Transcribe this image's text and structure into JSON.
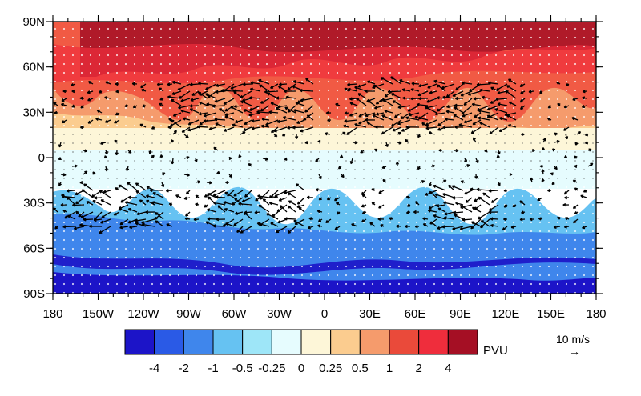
{
  "map": {
    "lat_labels": [
      "90N",
      "60N",
      "30N",
      "0",
      "30S",
      "60S",
      "90S"
    ],
    "lon_labels": [
      "180",
      "150W",
      "120W",
      "90W",
      "60W",
      "30W",
      "0",
      "30E",
      "60E",
      "90E",
      "120E",
      "150E",
      "180"
    ],
    "lat_range": [
      -90,
      90
    ],
    "lon_range": [
      -180,
      180
    ],
    "field": "PVU",
    "vector_reference": "10 m/s",
    "vector_reference_arrow": "→"
  },
  "colorbar": {
    "unit": "PVU",
    "labels": [
      "-4",
      "-2",
      "-1",
      "-0.5",
      "-0.25",
      "0",
      "0.25",
      "0.5",
      "1",
      "2",
      "4"
    ],
    "colors": [
      "#1c14c8",
      "#2a5ae6",
      "#3f86ec",
      "#66c2f2",
      "#9ee6f8",
      "#e6fcfe",
      "#fdf6d8",
      "#fbcc8f",
      "#f59b6c",
      "#ea4a3a",
      "#ef2d3c",
      "#a50f24"
    ]
  }
}
